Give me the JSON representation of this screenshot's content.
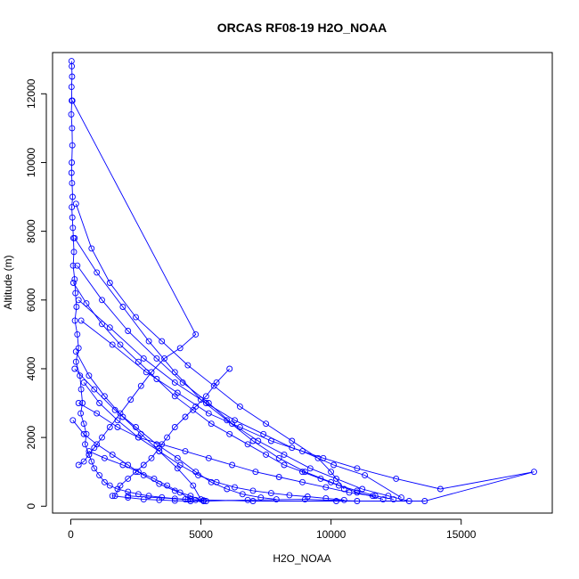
{
  "chart_data": {
    "type": "line",
    "title": "ORCAS RF08-19 H2O_NOAA",
    "xlabel": "H2O_NOAA",
    "ylabel": "Altitude (m)",
    "xlim": [
      -700,
      18500
    ],
    "ylim": [
      -200,
      13200
    ],
    "x_ticks": [
      0,
      5000,
      10000,
      15000
    ],
    "x_tick_labels": [
      "0",
      "5000",
      "10000",
      "15000"
    ],
    "y_ticks": [
      0,
      2000,
      4000,
      6000,
      8000,
      10000,
      12000
    ],
    "y_tick_labels": [
      "0",
      "2000",
      "4000",
      "6000",
      "8000",
      "10000",
      "12000"
    ],
    "grid": false,
    "marker": "open-circle",
    "color": "#0000ff",
    "series": [
      {
        "x": [
          30,
          40,
          50,
          30,
          40,
          20,
          50,
          60,
          40,
          30,
          50,
          70,
          40,
          60,
          80,
          100,
          120,
          90,
          150,
          180,
          220,
          160,
          250,
          300,
          200,
          350,
          400,
          450,
          380,
          500,
          600,
          550,
          700,
          800,
          900,
          1100,
          1300,
          1500,
          1800,
          2200,
          2600,
          3000,
          3500,
          4000,
          4500,
          4800,
          5100
        ],
        "y": [
          12950,
          12800,
          12500,
          12200,
          11800,
          11400,
          11000,
          10500,
          10000,
          9700,
          9400,
          9000,
          8700,
          8400,
          8100,
          7800,
          7400,
          7000,
          6600,
          6200,
          5800,
          5400,
          5000,
          4600,
          4200,
          3800,
          3400,
          3000,
          2700,
          2400,
          2100,
          1800,
          1500,
          1300,
          1100,
          900,
          700,
          600,
          500,
          420,
          350,
          300,
          260,
          220,
          200,
          180,
          170
        ]
      },
      {
        "x": [
          60,
          4800,
          4200,
          3600,
          3100,
          2700,
          2300,
          1900,
          1500,
          1200,
          900,
          700,
          500,
          300
        ],
        "y": [
          11800,
          5000,
          4600,
          4300,
          3900,
          3500,
          3100,
          2700,
          2300,
          2000,
          1700,
          1500,
          1300,
          1200
        ]
      },
      {
        "x": [
          200,
          800,
          1500,
          2500,
          3500,
          4500,
          5500,
          6500,
          7500,
          8500,
          9500,
          10000,
          10500
        ],
        "y": [
          8800,
          7500,
          6500,
          5500,
          4800,
          4100,
          3500,
          2900,
          2400,
          1900,
          1400,
          1000,
          500
        ]
      },
      {
        "x": [
          150,
          1000,
          2000,
          3000,
          4000,
          5000,
          6000,
          7000,
          8000,
          9000,
          10000,
          11000,
          12000
        ],
        "y": [
          7800,
          6800,
          5800,
          4800,
          3900,
          3100,
          2500,
          1900,
          1400,
          1000,
          700,
          400,
          200
        ]
      },
      {
        "x": [
          250,
          1200,
          2200,
          3300,
          4300,
          5300,
          6200,
          7200,
          8200,
          9200,
          10200,
          11200,
          12200,
          13000
        ],
        "y": [
          7000,
          6000,
          5100,
          4300,
          3600,
          3000,
          2400,
          1900,
          1500,
          1100,
          800,
          500,
          300,
          150
        ]
      },
      {
        "x": [
          300,
          1500,
          2800,
          4000,
          5200,
          6300,
          7400,
          8500,
          9700,
          11000,
          12500,
          14200,
          17800,
          13600,
          10200,
          7000,
          4400,
          2200
        ],
        "y": [
          6000,
          5200,
          4300,
          3600,
          3000,
          2500,
          2100,
          1700,
          1400,
          1100,
          800,
          500,
          1000,
          150,
          150,
          150,
          200,
          300
        ]
      },
      {
        "x": [
          400,
          1600,
          2900,
          4100,
          5300,
          6500,
          7700,
          8900,
          10100,
          11300,
          12700
        ],
        "y": [
          5400,
          4700,
          3900,
          3300,
          2700,
          2300,
          1900,
          1600,
          1200,
          900,
          250
        ]
      },
      {
        "x": [
          200,
          700,
          1300,
          2000,
          2700,
          3400,
          4100,
          4700,
          5000
        ],
        "y": [
          4500,
          3800,
          3200,
          2600,
          2100,
          1600,
          1100,
          600,
          200
        ]
      },
      {
        "x": [
          150,
          900,
          1700,
          2500,
          3300,
          4100,
          4800,
          5400,
          6000,
          6600,
          7300,
          7900
        ],
        "y": [
          4000,
          3400,
          2800,
          2300,
          1800,
          1400,
          1000,
          700,
          500,
          350,
          250,
          200
        ]
      },
      {
        "x": [
          500,
          1100,
          1800,
          2600,
          3400,
          4200,
          4900,
          5600,
          6300,
          7000,
          7700,
          8400,
          9100,
          9800,
          10500
        ],
        "y": [
          3600,
          3000,
          2500,
          2000,
          1600,
          1200,
          900,
          700,
          550,
          450,
          380,
          320,
          280,
          230,
          180
        ]
      },
      {
        "x": [
          6100,
          5600,
          5200,
          4800,
          4400,
          4000,
          3700,
          3400,
          3100,
          2800,
          2500,
          2200,
          1900,
          1700
        ],
        "y": [
          4000,
          3600,
          3200,
          2900,
          2600,
          2300,
          2000,
          1700,
          1400,
          1200,
          1000,
          800,
          600,
          300
        ]
      },
      {
        "x": [
          100,
          600,
          1200,
          1900,
          2600,
          3300,
          4000,
          4700,
          5400,
          6100,
          6800,
          7500,
          8200,
          8900,
          9600,
          10300,
          11000,
          11700,
          12400
        ],
        "y": [
          6500,
          5900,
          5300,
          4700,
          4200,
          3700,
          3200,
          2800,
          2400,
          2100,
          1800,
          1500,
          1200,
          1000,
          800,
          600,
          450,
          300,
          200
        ]
      },
      {
        "x": [
          300,
          1000,
          1800,
          2600,
          3500,
          4400,
          5300,
          6200,
          7100,
          8000,
          8900,
          9800,
          10700,
          11600
        ],
        "y": [
          3000,
          2700,
          2300,
          2000,
          1800,
          1600,
          1400,
          1200,
          1000,
          850,
          700,
          550,
          400,
          300
        ]
      },
      {
        "x": [
          80,
          500,
          1000,
          1600,
          2200,
          2800,
          3400,
          4000,
          4600,
          5100
        ],
        "y": [
          2500,
          2100,
          1800,
          1500,
          1200,
          900,
          650,
          450,
          300,
          150
        ]
      },
      {
        "x": [
          700,
          1300,
          2000,
          2600,
          3200,
          3700,
          4200,
          4600
        ],
        "y": [
          1600,
          1400,
          1200,
          1000,
          800,
          600,
          400,
          200
        ]
      },
      {
        "x": [
          1600,
          2200,
          2800,
          3400,
          4000,
          4600,
          5200,
          6800,
          9000,
          11000
        ],
        "y": [
          300,
          250,
          200,
          180,
          160,
          150,
          150,
          180,
          200,
          150
        ]
      }
    ]
  }
}
